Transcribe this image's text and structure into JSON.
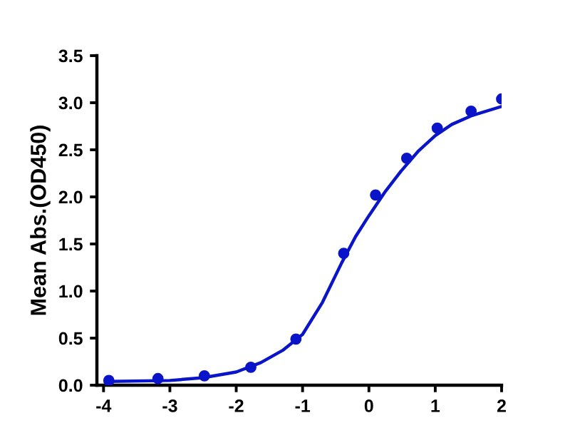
{
  "chart_data": {
    "type": "scatter",
    "ylabel": "Mean Abs.(OD450)",
    "xlim": [
      -4.1,
      2.0
    ],
    "ylim": [
      0,
      3.5
    ],
    "xticks": [
      -4,
      -3,
      -2,
      -1,
      0,
      1,
      2
    ],
    "yticks": [
      {
        "value": 0,
        "label": "0.0"
      },
      {
        "value": 0.5,
        "label": "0.5"
      },
      {
        "value": 1,
        "label": "1.0"
      },
      {
        "value": 1.5,
        "label": "1.5"
      },
      {
        "value": 2,
        "label": "2.0"
      },
      {
        "value": 2.5,
        "label": "2.5"
      },
      {
        "value": 3,
        "label": "3.0"
      },
      {
        "value": 3.5,
        "label": "3.5"
      }
    ],
    "grid": false,
    "legend": false,
    "series": [
      {
        "color": "#0a14c8",
        "marker": "circle",
        "x": [
          -3.92,
          -3.18,
          -2.48,
          -1.78,
          -1.1,
          -0.38,
          0.1,
          0.57,
          1.03,
          1.54,
          2.0
        ],
        "values": [
          0.05,
          0.07,
          0.1,
          0.19,
          0.49,
          1.4,
          2.02,
          2.41,
          2.73,
          2.91,
          3.04
        ]
      },
      {
        "type": "line",
        "color": "#0a14c8",
        "line_style": "solid",
        "x": [
          -3.92,
          -3.0,
          -2.5,
          -2.0,
          -1.63,
          -1.3,
          -1.0,
          -0.7,
          -0.41,
          -0.2,
          0.0,
          0.25,
          0.48,
          0.75,
          1.0,
          1.25,
          1.54,
          2.0
        ],
        "values": [
          0.04,
          0.05,
          0.08,
          0.14,
          0.24,
          0.37,
          0.54,
          0.88,
          1.3,
          1.58,
          1.8,
          2.06,
          2.27,
          2.49,
          2.65,
          2.77,
          2.86,
          2.96
        ]
      }
    ]
  }
}
